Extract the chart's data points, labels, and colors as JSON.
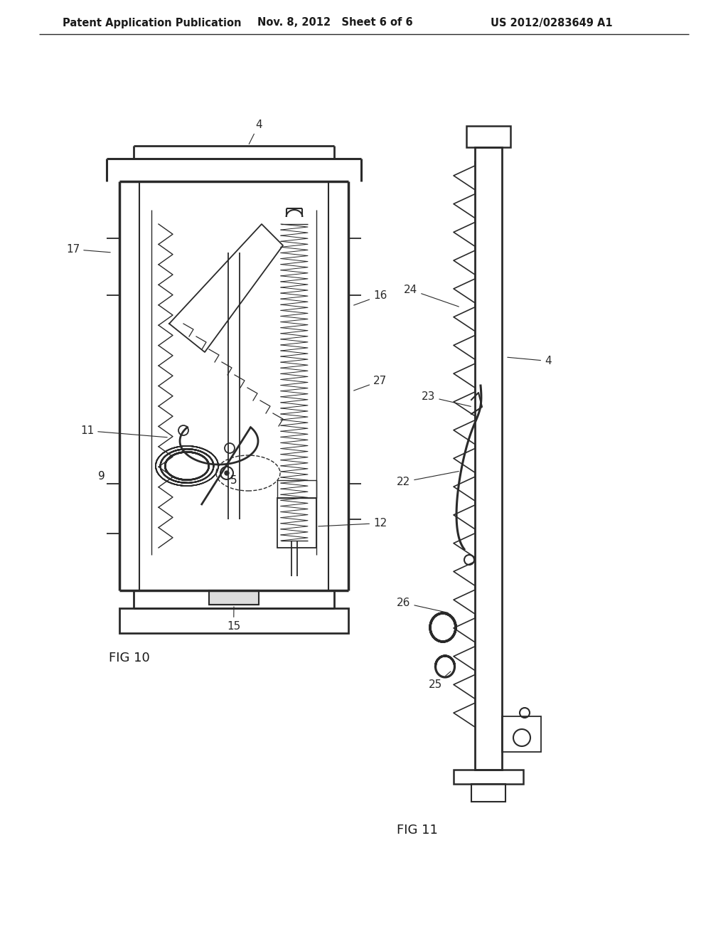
{
  "bg_color": "#ffffff",
  "header_left": "Patent Application Publication",
  "header_mid": "Nov. 8, 2012   Sheet 6 of 6",
  "header_right": "US 2012/0283649 A1",
  "fig10_label": "FIG 10",
  "fig11_label": "FIG 11",
  "line_color": "#2a2a2a",
  "label_color": "#1a1a1a"
}
